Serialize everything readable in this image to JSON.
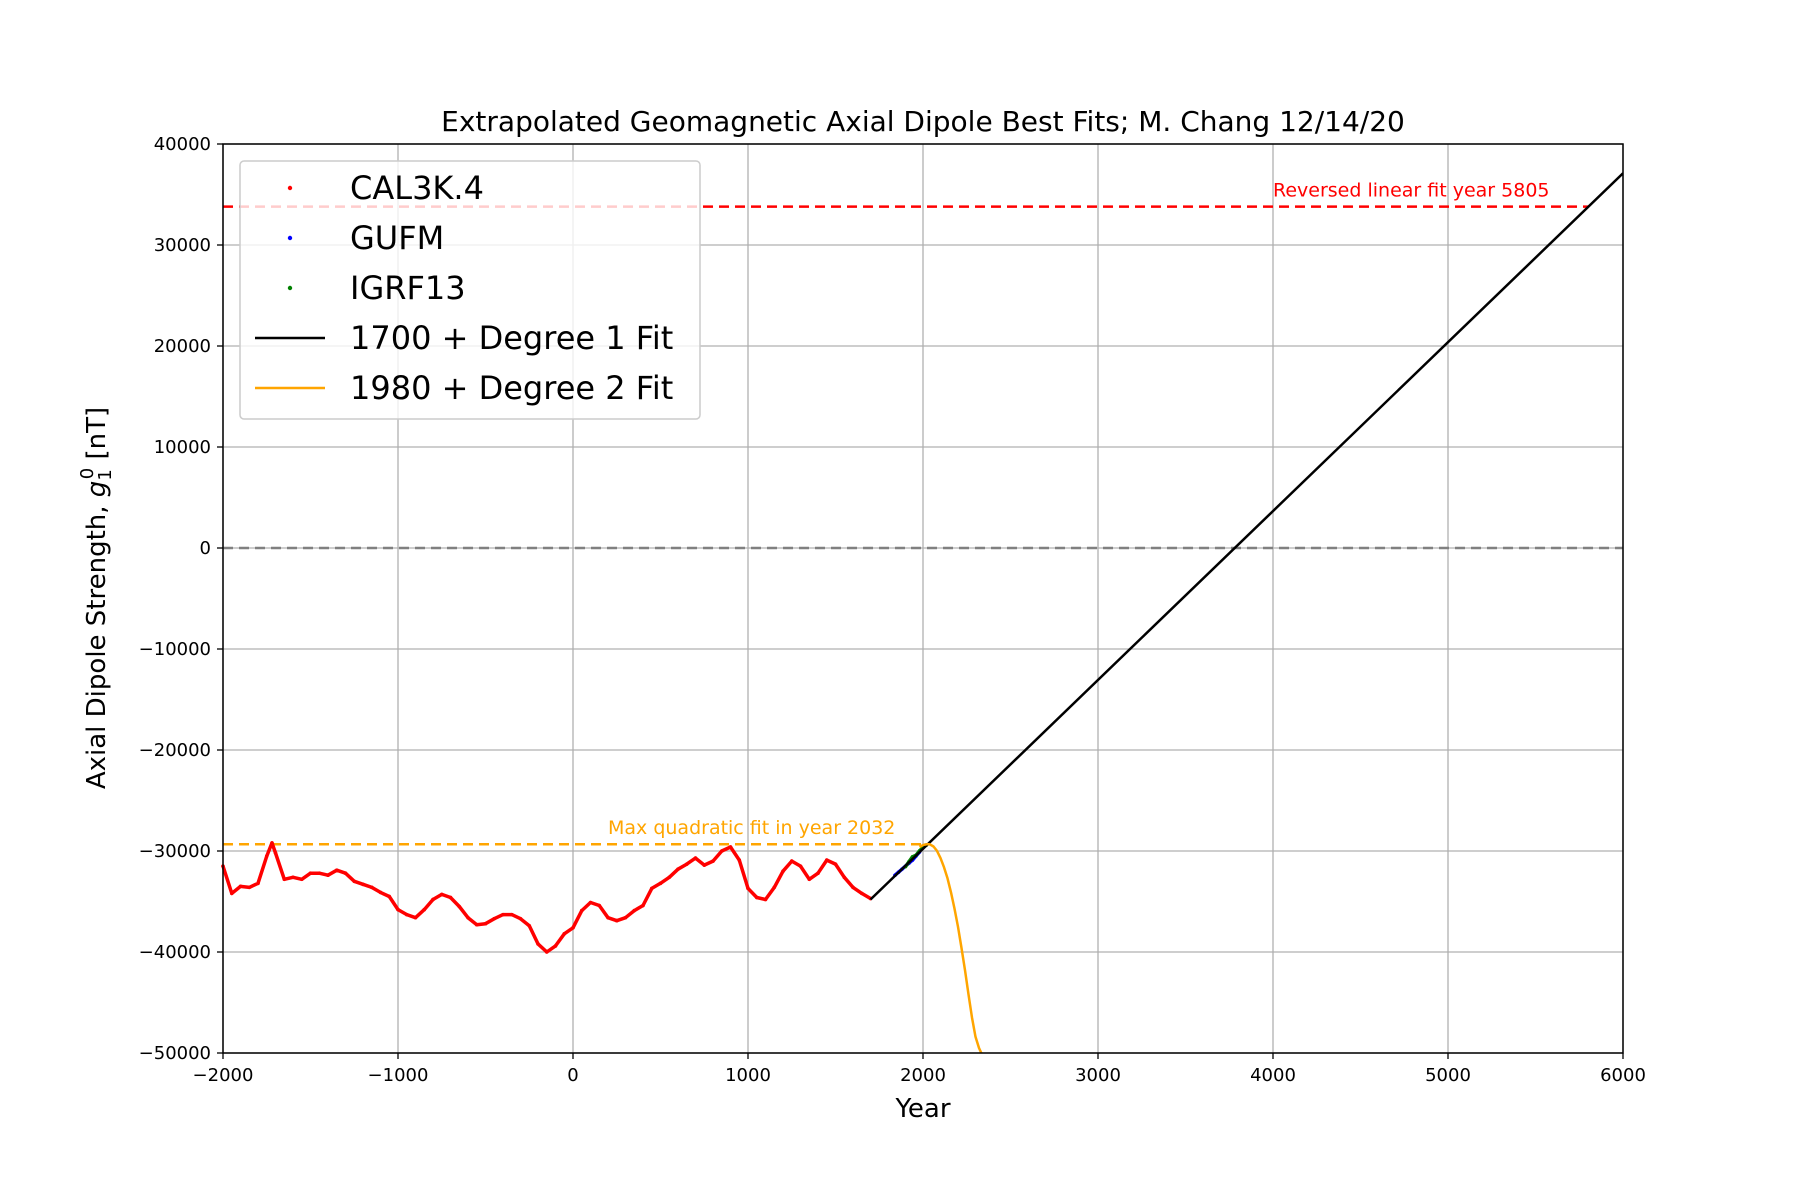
{
  "chart_data": {
    "type": "line",
    "title": "Extrapolated Geomagnetic Axial Dipole Best Fits; M. Chang 12/14/20",
    "xlabel": "Year",
    "ylabel_prefix": "Axial Dipole Strength, ",
    "ylabel_symbol": "g",
    "ylabel_sub": "1",
    "ylabel_sup": "0",
    "ylabel_unit": " [nT]",
    "xlim": [
      -2000,
      6000
    ],
    "ylim": [
      -50000,
      40000
    ],
    "x_ticks": [
      -2000,
      -1000,
      0,
      1000,
      2000,
      3000,
      4000,
      5000,
      6000
    ],
    "x_tick_labels": [
      "−2000",
      "−1000",
      "0",
      "1000",
      "2000",
      "3000",
      "4000",
      "5000",
      "6000"
    ],
    "y_ticks": [
      -50000,
      -40000,
      -30000,
      -20000,
      -10000,
      0,
      10000,
      20000,
      30000,
      40000
    ],
    "y_tick_labels": [
      "−50000",
      "−40000",
      "−30000",
      "−20000",
      "−10000",
      "0",
      "10000",
      "20000",
      "30000",
      "40000"
    ],
    "grid": true,
    "legend_placement": "upper-left",
    "series": [
      {
        "name": "CAL3K.4",
        "style": "points",
        "color": "#ff0000",
        "x": [
          -2000,
          -1950,
          -1900,
          -1850,
          -1800,
          -1750,
          -1720,
          -1700,
          -1650,
          -1600,
          -1550,
          -1500,
          -1450,
          -1400,
          -1350,
          -1300,
          -1250,
          -1200,
          -1150,
          -1100,
          -1050,
          -1000,
          -950,
          -900,
          -850,
          -800,
          -750,
          -700,
          -650,
          -600,
          -550,
          -500,
          -450,
          -400,
          -350,
          -300,
          -250,
          -200,
          -150,
          -100,
          -50,
          0,
          50,
          100,
          150,
          200,
          250,
          300,
          350,
          400,
          450,
          500,
          550,
          600,
          650,
          700,
          750,
          800,
          850,
          900,
          950,
          1000,
          1050,
          1100,
          1150,
          1200,
          1250,
          1300,
          1350,
          1400,
          1450,
          1500,
          1550,
          1600,
          1650,
          1700
        ],
        "y": [
          -31500,
          -34200,
          -33500,
          -33600,
          -33200,
          -30500,
          -29200,
          -30200,
          -32800,
          -32600,
          -32800,
          -32200,
          -32200,
          -32400,
          -31900,
          -32200,
          -33000,
          -33300,
          -33600,
          -34100,
          -34500,
          -35800,
          -36300,
          -36600,
          -35800,
          -34800,
          -34300,
          -34600,
          -35500,
          -36600,
          -37300,
          -37200,
          -36700,
          -36300,
          -36300,
          -36700,
          -37400,
          -39200,
          -40000,
          -39400,
          -38200,
          -37600,
          -35900,
          -35100,
          -35400,
          -36600,
          -36900,
          -36600,
          -35900,
          -35400,
          -33700,
          -33200,
          -32600,
          -31800,
          -31300,
          -30700,
          -31400,
          -31000,
          -30000,
          -29600,
          -30900,
          -33700,
          -34600,
          -34800,
          -33600,
          -32000,
          -31000,
          -31500,
          -32800,
          -32200,
          -30900,
          -31300,
          -32600,
          -33600,
          -34200,
          -34700
        ]
      },
      {
        "name": "GUFM",
        "style": "points",
        "color": "#0000ff",
        "x": [
          1840,
          1860,
          1880,
          1900,
          1920,
          1940,
          1960,
          1980
        ],
        "y": [
          -32400,
          -32100,
          -31800,
          -31500,
          -31200,
          -30900,
          -30500,
          -30100
        ]
      },
      {
        "name": "IGRF13",
        "style": "points",
        "color": "#008000",
        "x": [
          1900,
          1920,
          1940,
          1960,
          1980,
          2000,
          2020
        ],
        "y": [
          -31540,
          -31060,
          -30570,
          -30420,
          -29990,
          -29620,
          -29400
        ]
      },
      {
        "name": "1700 + Degree 1 Fit",
        "style": "line",
        "color": "#000000",
        "x": [
          1700,
          6000
        ],
        "y": [
          -34800,
          37100
        ]
      },
      {
        "name": "1980 + Degree 2 Fit",
        "style": "line",
        "color": "#ffa500",
        "x": [
          1980,
          1990,
          2000,
          2010,
          2020,
          2032,
          2040,
          2060,
          2080,
          2100,
          2120,
          2140,
          2160,
          2180,
          2200,
          2220,
          2240,
          2260,
          2280,
          2300,
          2320,
          2333
        ],
        "y": [
          -29600,
          -29500,
          -29420,
          -29370,
          -29340,
          -29330,
          -29350,
          -29550,
          -29990,
          -30700,
          -31600,
          -32700,
          -34100,
          -35700,
          -37500,
          -39600,
          -41800,
          -44200,
          -46500,
          -48400,
          -49500,
          -50000
        ]
      }
    ],
    "hlines": [
      {
        "y": 33800,
        "color": "#ff0000",
        "style": "dashed",
        "x": [
          -2000,
          5805
        ]
      },
      {
        "y": -29330,
        "color": "#ffa500",
        "style": "dashed",
        "x": [
          -2000,
          2032
        ]
      },
      {
        "y": 0,
        "color": "#808080",
        "style": "dashed",
        "x": [
          -2000,
          6000
        ]
      }
    ],
    "annotations": [
      {
        "text": "Reversed linear fit year 5805",
        "x": 4000,
        "y": 34800,
        "color": "#ff0000"
      },
      {
        "text": "Max quadratic fit in year 2032",
        "x": 200,
        "y": -28300,
        "color": "#ffa500"
      }
    ]
  }
}
